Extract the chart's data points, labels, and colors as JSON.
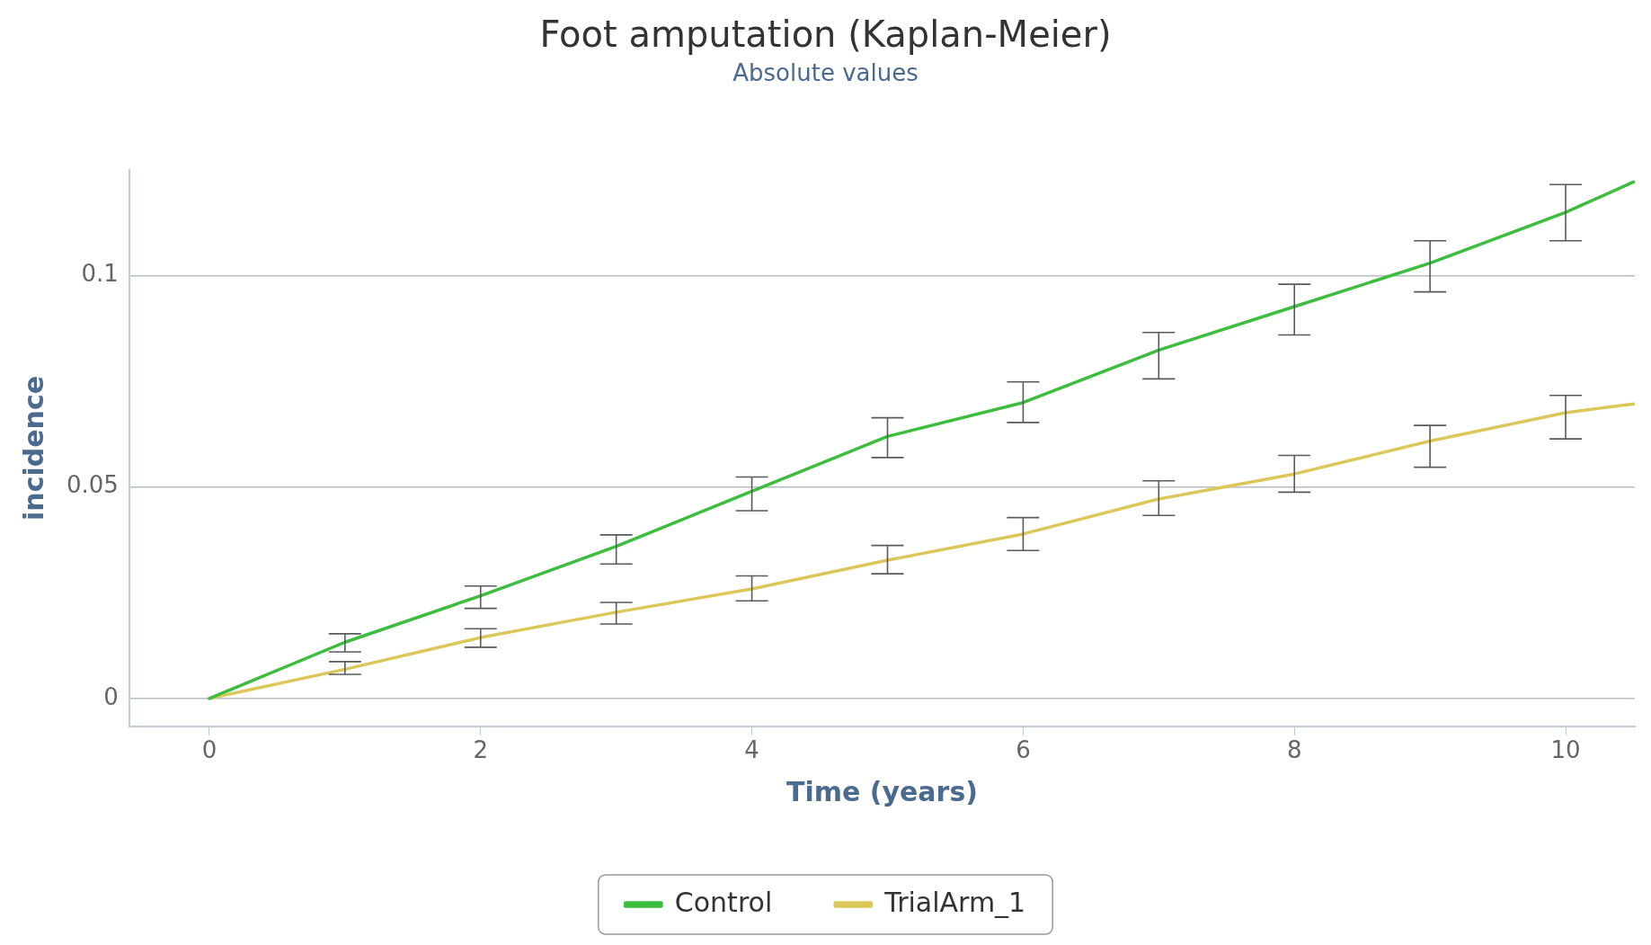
{
  "chart_data": {
    "type": "line",
    "title": "Foot amputation (Kaplan-Meier)",
    "subtitle": "Absolute values",
    "xlabel": "Time (years)",
    "ylabel": "incidence",
    "x": [
      0,
      1,
      2,
      3,
      4,
      5,
      6,
      7,
      8,
      9,
      10,
      10.5
    ],
    "series": [
      {
        "name": "Control",
        "color": "#3dbd3d",
        "values": [
          0,
          0.0133,
          0.0243,
          0.036,
          0.049,
          0.062,
          0.07,
          0.0824,
          0.0927,
          0.103,
          0.115,
          0.1222
        ],
        "errors": [
          null,
          [
            0.011,
            0.0153
          ],
          [
            0.0213,
            0.0266
          ],
          [
            0.0318,
            0.0387
          ],
          [
            0.0444,
            0.0524
          ],
          [
            0.057,
            0.0664
          ],
          [
            0.0653,
            0.0749
          ],
          [
            0.0756,
            0.0866
          ],
          [
            0.086,
            0.098
          ],
          [
            0.0962,
            0.1083
          ],
          [
            0.1083,
            0.1216
          ],
          null
        ]
      },
      {
        "name": "TrialArm_1",
        "color": "#dcc85a",
        "values": [
          0,
          0.0069,
          0.0144,
          0.0204,
          0.0259,
          0.0327,
          0.0389,
          0.0472,
          0.0531,
          0.0609,
          0.0676,
          0.0697
        ],
        "errors": [
          null,
          [
            0.0057,
            0.0087
          ],
          [
            0.0121,
            0.0165
          ],
          [
            0.0176,
            0.0227
          ],
          [
            0.0231,
            0.029
          ],
          [
            0.0295,
            0.0362
          ],
          [
            0.035,
            0.0428
          ],
          [
            0.0433,
            0.0515
          ],
          [
            0.0488,
            0.0575
          ],
          [
            0.0547,
            0.0646
          ],
          [
            0.0614,
            0.0717
          ],
          null
        ]
      }
    ],
    "xlim": [
      -0.59,
      10.51
    ],
    "xticks": [
      0,
      2,
      4,
      6,
      8,
      10
    ],
    "ylim": [
      -0.0066,
      0.125
    ],
    "yticks": [
      0,
      0.05,
      0.1
    ],
    "grid": "y",
    "legend": "bottom",
    "marker": "none",
    "line_style": "solid"
  }
}
